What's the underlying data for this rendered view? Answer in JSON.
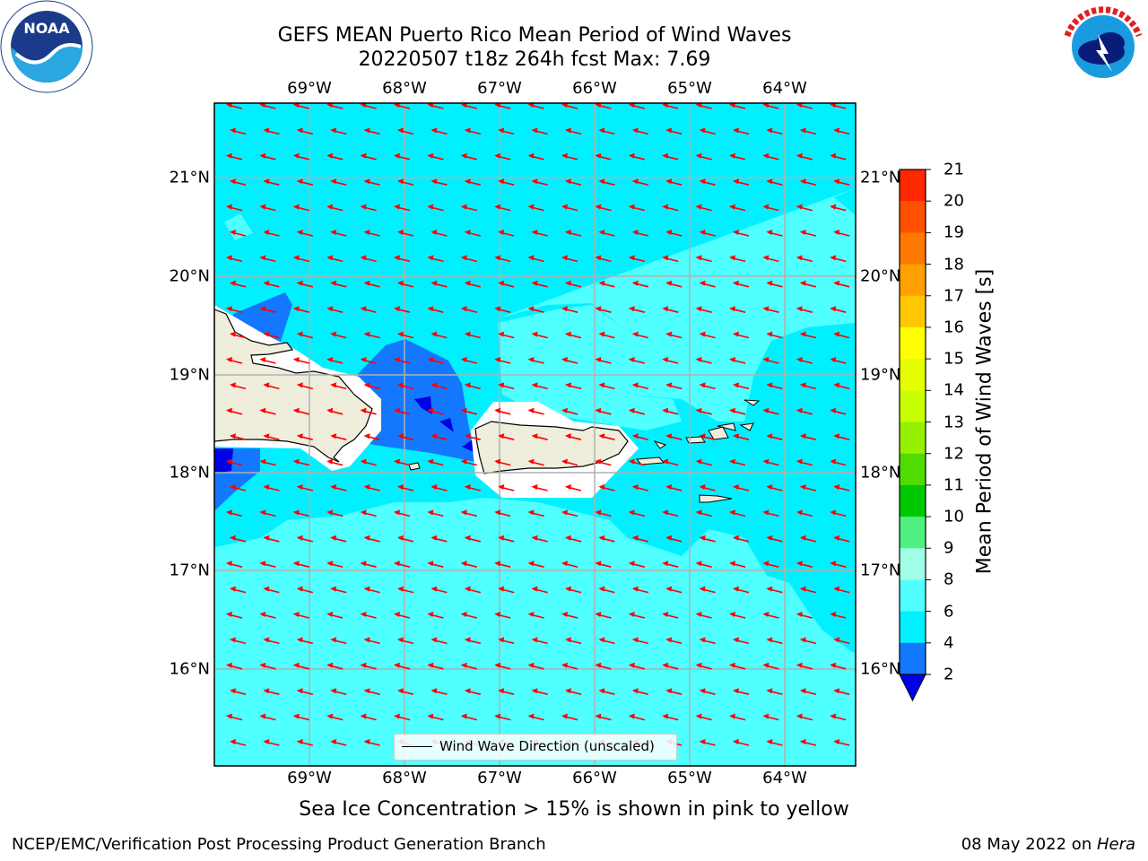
{
  "title_line1": "GEFS MEAN Puerto Rico Mean Period of Wind Waves",
  "title_line2": "20220507 t18z 264h fcst   Max: 7.69",
  "lon_labels": [
    "69°W",
    "68°W",
    "67°W",
    "66°W",
    "65°W",
    "64°W"
  ],
  "lat_labels": [
    "21°N",
    "20°N",
    "19°N",
    "18°N",
    "17°N",
    "16°N"
  ],
  "legend_label": "Wind Wave Direction (unscaled)",
  "colorbar": {
    "label": "Mean Period of Wind Waves [s]",
    "ticks": [
      "21",
      "20",
      "19",
      "18",
      "17",
      "16",
      "15",
      "14",
      "13",
      "12",
      "11",
      "10",
      "9",
      "8",
      "6",
      "4",
      "2"
    ],
    "colors": [
      "#ff0000",
      "#ff2800",
      "#ff5000",
      "#ff7800",
      "#ffa000",
      "#ffc800",
      "#ffff00",
      "#e6ff00",
      "#c8ff00",
      "#96f000",
      "#50dc00",
      "#00c800",
      "#50f080",
      "#a0ffe6",
      "#50ffff",
      "#00f0ff",
      "#1478ff",
      "#0000e6"
    ]
  },
  "subtitle": "Sea Ice Concentration > 15% is shown in pink to yellow",
  "footer_left": "NCEP/EMC/Verification Post Processing Product Generation Branch",
  "footer_date": "08 May 2022 on ",
  "footer_machine": "Hera",
  "logos": {
    "left": "NOAA",
    "right": "NATIONAL WEATHER SERVICE"
  },
  "map_colors": {
    "ocean_main": "#00f0ff",
    "ocean_light": "#50ffff",
    "low_period": "#1478ff",
    "very_low": "#0000e6",
    "land": "#efeedd",
    "arrow": "#ff0000",
    "grid": "#b0b0b0"
  }
}
